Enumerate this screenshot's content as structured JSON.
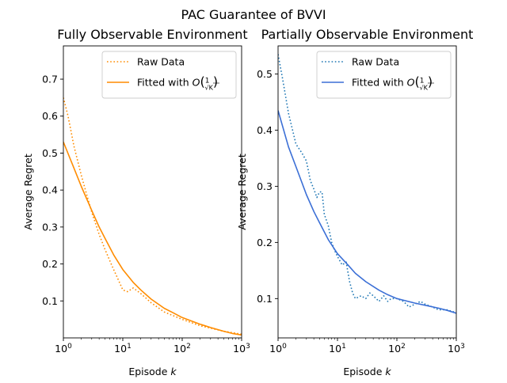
{
  "suptitle": "PAC Guarantee of BVVI",
  "chart_data": [
    {
      "type": "line",
      "title": "Fully Observable Environment",
      "xlabel": "Episode k",
      "ylabel": "Average Regret",
      "x_scale": "log",
      "xlim": [
        1,
        1000
      ],
      "ylim": [
        0.0,
        0.79
      ],
      "x_ticks": [
        1,
        10,
        100,
        1000
      ],
      "x_tick_labels": [
        "10^0",
        "10^1",
        "10^2",
        "10^3"
      ],
      "y_ticks": [
        0.1,
        0.2,
        0.3,
        0.4,
        0.5,
        0.6,
        0.7
      ],
      "y_tick_labels": [
        "0.1",
        "0.2",
        "0.3",
        "0.4",
        "0.5",
        "0.6",
        "0.7"
      ],
      "legend_position": "upper right",
      "series": [
        {
          "name": "Raw Data",
          "style": "dotted",
          "color": "#ff8c00",
          "x": [
            1,
            1.2,
            1.5,
            2,
            2.5,
            3,
            4,
            5,
            6,
            7,
            8,
            10,
            12,
            15,
            20,
            30,
            50,
            100,
            200,
            500,
            1000
          ],
          "y": [
            0.65,
            0.6,
            0.52,
            0.44,
            0.385,
            0.34,
            0.28,
            0.24,
            0.21,
            0.185,
            0.165,
            0.13,
            0.125,
            0.135,
            0.12,
            0.095,
            0.07,
            0.05,
            0.033,
            0.018,
            0.01
          ]
        },
        {
          "name": "Fitted with O(1/√K)",
          "style": "solid",
          "color": "#ff8c00",
          "x": [
            1,
            1.5,
            2,
            3,
            4,
            5,
            7,
            10,
            15,
            20,
            30,
            50,
            70,
            100,
            200,
            300,
            500,
            700,
            1000
          ],
          "y": [
            0.53,
            0.46,
            0.41,
            0.345,
            0.3,
            0.27,
            0.225,
            0.185,
            0.15,
            0.13,
            0.105,
            0.08,
            0.068,
            0.055,
            0.037,
            0.028,
            0.018,
            0.012,
            0.008
          ]
        }
      ]
    },
    {
      "type": "line",
      "title": "Partially Observable Environment",
      "xlabel": "Episode k",
      "ylabel": "Average Regret",
      "x_scale": "log",
      "xlim": [
        1,
        1000
      ],
      "ylim": [
        0.03,
        0.55
      ],
      "x_ticks": [
        1,
        10,
        100,
        1000
      ],
      "x_tick_labels": [
        "10^0",
        "10^1",
        "10^2",
        "10^3"
      ],
      "y_ticks": [
        0.1,
        0.2,
        0.3,
        0.4,
        0.5
      ],
      "y_tick_labels": [
        "0.1",
        "0.2",
        "0.3",
        "0.4",
        "0.5"
      ],
      "legend_position": "upper right",
      "series": [
        {
          "name": "Raw Data",
          "style": "dotted",
          "color": "#1f77b4",
          "x": [
            1,
            1.2,
            1.5,
            2,
            2.5,
            3,
            3.5,
            4,
            4.5,
            5,
            5.5,
            6,
            7,
            8,
            9,
            10,
            12,
            14,
            16,
            18,
            20,
            25,
            30,
            35,
            40,
            50,
            60,
            70,
            80,
            100,
            130,
            160,
            200,
            250,
            300,
            400,
            500,
            700,
            1000
          ],
          "y": [
            0.535,
            0.49,
            0.43,
            0.375,
            0.36,
            0.345,
            0.31,
            0.295,
            0.28,
            0.29,
            0.29,
            0.25,
            0.23,
            0.2,
            0.185,
            0.175,
            0.16,
            0.165,
            0.13,
            0.11,
            0.1,
            0.105,
            0.1,
            0.11,
            0.105,
            0.095,
            0.105,
            0.095,
            0.1,
            0.1,
            0.095,
            0.085,
            0.09,
            0.095,
            0.09,
            0.085,
            0.08,
            0.08,
            0.075
          ]
        },
        {
          "name": "Fitted with O(1/√K)",
          "style": "solid",
          "color": "#3b6fd6",
          "x": [
            1,
            1.5,
            2,
            3,
            4,
            5,
            7,
            10,
            15,
            20,
            30,
            50,
            70,
            100,
            200,
            300,
            500,
            700,
            1000
          ],
          "y": [
            0.435,
            0.37,
            0.335,
            0.285,
            0.255,
            0.235,
            0.205,
            0.18,
            0.16,
            0.145,
            0.13,
            0.115,
            0.107,
            0.1,
            0.092,
            0.088,
            0.083,
            0.079,
            0.074
          ]
        }
      ]
    }
  ]
}
